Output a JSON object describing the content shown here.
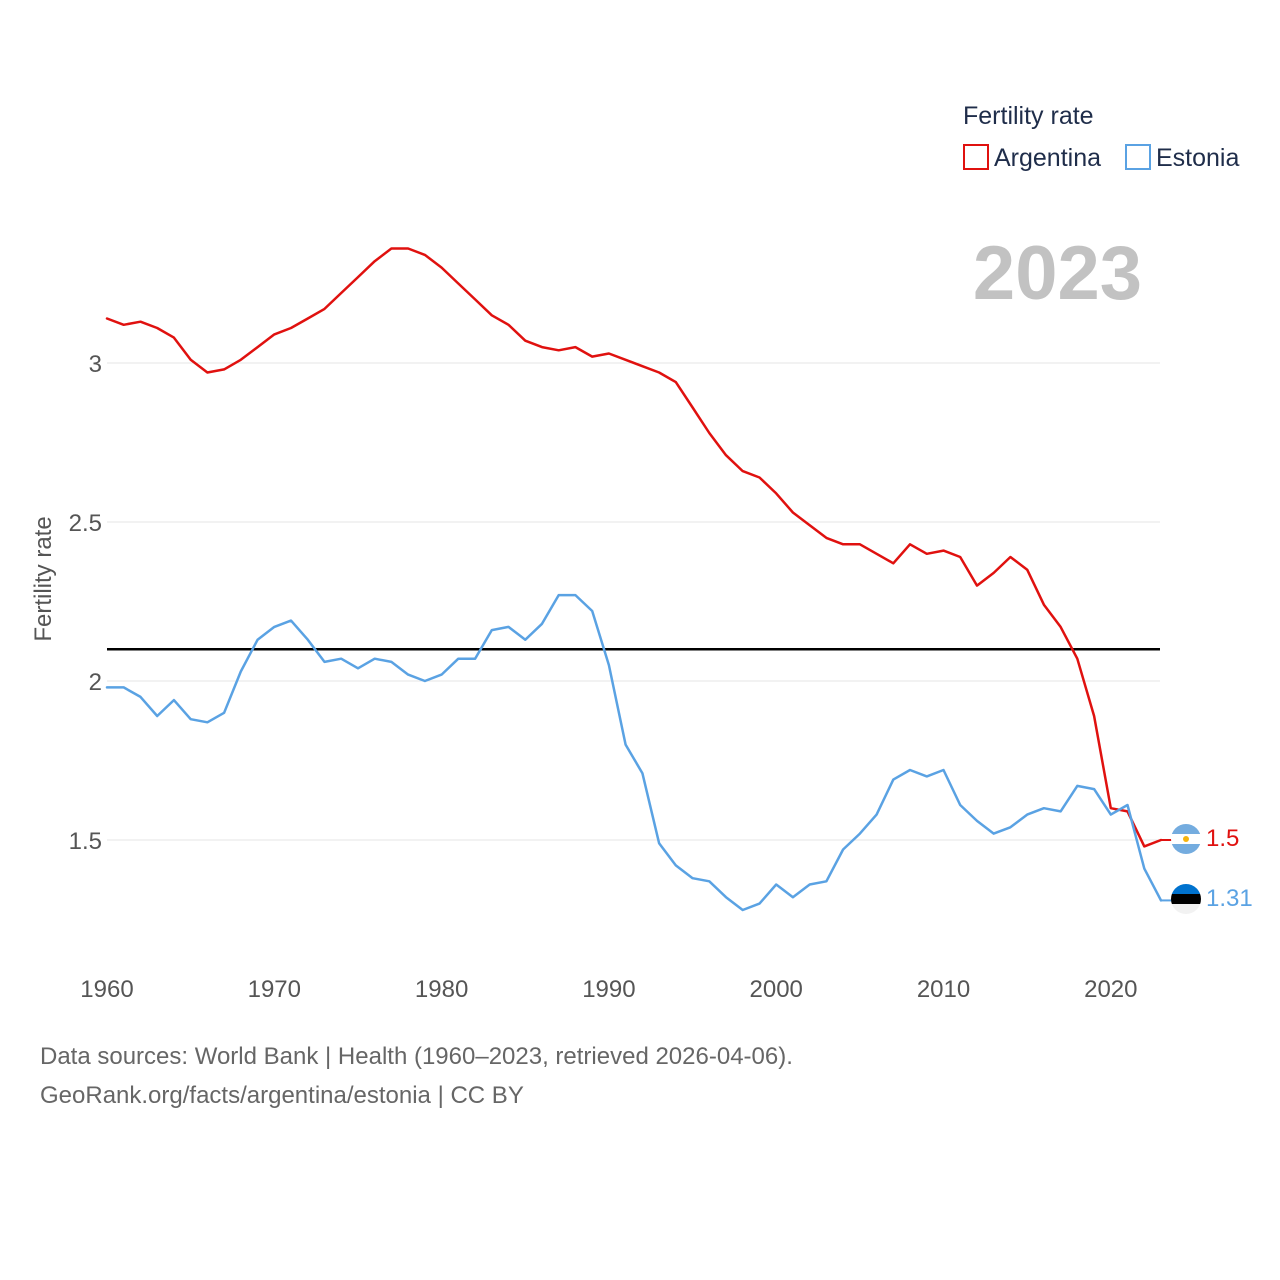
{
  "chart_data": {
    "type": "line",
    "title": "",
    "ylabel": "Fertility rate",
    "xlabel": "",
    "legend_title": "Fertility rate",
    "legend_position": "top-right",
    "current_year_label": "2023",
    "xlim": [
      1960,
      2023
    ],
    "ylim": [
      1.16,
      3.4
    ],
    "x_ticks": [
      1960,
      1970,
      1980,
      1990,
      2000,
      2010,
      2020
    ],
    "y_ticks": [
      1.5,
      2,
      2.5,
      3
    ],
    "y_tick_labels": [
      "1.5",
      "2",
      "2.5",
      "3"
    ],
    "reference_line": {
      "y": 2.1
    },
    "x": [
      1960,
      1961,
      1962,
      1963,
      1964,
      1965,
      1966,
      1967,
      1968,
      1969,
      1970,
      1971,
      1972,
      1973,
      1974,
      1975,
      1976,
      1977,
      1978,
      1979,
      1980,
      1981,
      1982,
      1983,
      1984,
      1985,
      1986,
      1987,
      1988,
      1989,
      1990,
      1991,
      1992,
      1993,
      1994,
      1995,
      1996,
      1997,
      1998,
      1999,
      2000,
      2001,
      2002,
      2003,
      2004,
      2005,
      2006,
      2007,
      2008,
      2009,
      2010,
      2011,
      2012,
      2013,
      2014,
      2015,
      2016,
      2017,
      2018,
      2019,
      2020,
      2021,
      2022,
      2023
    ],
    "series": [
      {
        "name": "Argentina",
        "color": "#e0110f",
        "end_label": "1.5",
        "flag": "argentina-flag-icon",
        "values": [
          3.14,
          3.12,
          3.13,
          3.11,
          3.08,
          3.01,
          2.97,
          2.98,
          3.01,
          3.05,
          3.09,
          3.11,
          3.14,
          3.17,
          3.22,
          3.27,
          3.32,
          3.36,
          3.36,
          3.34,
          3.3,
          3.25,
          3.2,
          3.15,
          3.12,
          3.07,
          3.05,
          3.04,
          3.05,
          3.02,
          3.03,
          3.01,
          2.99,
          2.97,
          2.94,
          2.86,
          2.78,
          2.71,
          2.66,
          2.64,
          2.59,
          2.53,
          2.49,
          2.45,
          2.43,
          2.43,
          2.4,
          2.37,
          2.43,
          2.4,
          2.41,
          2.39,
          2.3,
          2.34,
          2.39,
          2.35,
          2.24,
          2.17,
          2.07,
          1.89,
          1.6,
          1.59,
          1.48,
          1.5
        ]
      },
      {
        "name": "Estonia",
        "color": "#5aa2e3",
        "end_label": "1.31",
        "flag": "estonia-flag-icon",
        "values": [
          1.98,
          1.98,
          1.95,
          1.89,
          1.94,
          1.88,
          1.87,
          1.9,
          2.03,
          2.13,
          2.17,
          2.19,
          2.13,
          2.06,
          2.07,
          2.04,
          2.07,
          2.06,
          2.02,
          2.0,
          2.02,
          2.07,
          2.07,
          2.16,
          2.17,
          2.13,
          2.18,
          2.27,
          2.27,
          2.22,
          2.05,
          1.8,
          1.71,
          1.49,
          1.42,
          1.38,
          1.37,
          1.32,
          1.28,
          1.3,
          1.36,
          1.32,
          1.36,
          1.37,
          1.47,
          1.52,
          1.58,
          1.69,
          1.72,
          1.7,
          1.72,
          1.61,
          1.56,
          1.52,
          1.54,
          1.58,
          1.6,
          1.59,
          1.67,
          1.66,
          1.58,
          1.61,
          1.41,
          1.31
        ]
      }
    ]
  },
  "footer": {
    "line1": "Data sources: World Bank | Health (1960–2023, retrieved 2026-04-06).",
    "line2": "GeoRank.org/facts/argentina/estonia | CC BY"
  }
}
